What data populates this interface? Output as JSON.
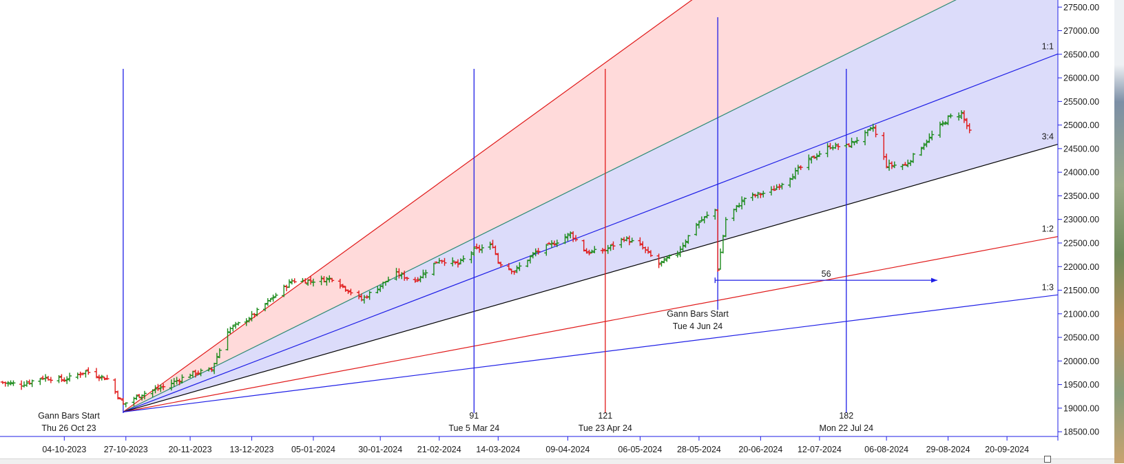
{
  "colors": {
    "up_bar": "#1a8a1a",
    "down_bar": "#e01818",
    "blue_line": "#1e1ee6",
    "red_line": "#e01818",
    "teal_line": "#2e8b74",
    "black_line": "#000000",
    "pink_fill": "#ffdada",
    "lavender_fill": "#dcdcfa"
  },
  "chart_data": {
    "type": "ohlc",
    "y_axis": {
      "range": [
        18400,
        27650
      ],
      "ticks": [
        "18500.00",
        "19000.00",
        "19500.00",
        "20000.00",
        "20500.00",
        "21000.00",
        "21500.00",
        "22000.00",
        "22500.00",
        "23000.00",
        "23500.00",
        "24000.00",
        "24500.00",
        "25000.00",
        "25500.00",
        "26000.00",
        "26500.00",
        "27000.00",
        "27500.00"
      ],
      "position": "right"
    },
    "x_axis": {
      "range": [
        "2023-09-10",
        "2024-10-09"
      ],
      "ticks": [
        {
          "date": "2023-10-04",
          "label": "04-10-2023"
        },
        {
          "date": "2023-10-27",
          "label": "27-10-2023"
        },
        {
          "date": "2023-11-20",
          "label": "20-11-2023"
        },
        {
          "date": "2023-12-13",
          "label": "13-12-2023"
        },
        {
          "date": "2024-01-05",
          "label": "05-01-2024"
        },
        {
          "date": "2024-01-30",
          "label": "30-01-2024"
        },
        {
          "date": "2024-02-21",
          "label": "21-02-2024"
        },
        {
          "date": "2024-03-14",
          "label": "14-03-2024"
        },
        {
          "date": "2024-04-09",
          "label": "09-04-2024"
        },
        {
          "date": "2024-05-06",
          "label": "06-05-2024"
        },
        {
          "date": "2024-05-28",
          "label": "28-05-2024"
        },
        {
          "date": "2024-06-20",
          "label": "20-06-2024"
        },
        {
          "date": "2024-07-12",
          "label": "12-07-2024"
        },
        {
          "date": "2024-08-06",
          "label": "06-08-2024"
        },
        {
          "date": "2024-08-29",
          "label": "29-08-2024"
        },
        {
          "date": "2024-09-20",
          "label": "20-09-2024"
        }
      ]
    },
    "price_anchors": [
      [
        "2023-09-10",
        19550
      ],
      [
        "2023-09-18",
        19500
      ],
      [
        "2023-09-26",
        19650
      ],
      [
        "2023-10-04",
        19600
      ],
      [
        "2023-10-12",
        19780
      ],
      [
        "2023-10-20",
        19620
      ],
      [
        "2023-10-26",
        19080
      ],
      [
        "2023-11-02",
        19300
      ],
      [
        "2023-11-10",
        19450
      ],
      [
        "2023-11-20",
        19720
      ],
      [
        "2023-11-28",
        19820
      ],
      [
        "2023-12-04",
        20650
      ],
      [
        "2023-12-13",
        20950
      ],
      [
        "2023-12-20",
        21300
      ],
      [
        "2023-12-28",
        21700
      ],
      [
        "2024-01-05",
        21700
      ],
      [
        "2024-01-12",
        21750
      ],
      [
        "2024-01-18",
        21500
      ],
      [
        "2024-01-23",
        21300
      ],
      [
        "2024-01-30",
        21600
      ],
      [
        "2024-02-05",
        21850
      ],
      [
        "2024-02-12",
        21700
      ],
      [
        "2024-02-21",
        22150
      ],
      [
        "2024-02-28",
        22050
      ],
      [
        "2024-03-05",
        22350
      ],
      [
        "2024-03-12",
        22450
      ],
      [
        "2024-03-14",
        22100
      ],
      [
        "2024-03-20",
        21900
      ],
      [
        "2024-03-28",
        22300
      ],
      [
        "2024-04-04",
        22500
      ],
      [
        "2024-04-10",
        22700
      ],
      [
        "2024-04-16",
        22300
      ],
      [
        "2024-04-23",
        22350
      ],
      [
        "2024-04-30",
        22600
      ],
      [
        "2024-05-06",
        22450
      ],
      [
        "2024-05-13",
        22050
      ],
      [
        "2024-05-20",
        22300
      ],
      [
        "2024-05-27",
        22900
      ],
      [
        "2024-06-03",
        23200
      ],
      [
        "2024-06-04",
        21950
      ],
      [
        "2024-06-07",
        23000
      ],
      [
        "2024-06-14",
        23450
      ],
      [
        "2024-06-24",
        23600
      ],
      [
        "2024-07-01",
        23900
      ],
      [
        "2024-07-08",
        24250
      ],
      [
        "2024-07-16",
        24550
      ],
      [
        "2024-07-22",
        24550
      ],
      [
        "2024-07-29",
        24800
      ],
      [
        "2024-08-01",
        24950
      ],
      [
        "2024-08-06",
        24150
      ],
      [
        "2024-08-13",
        24150
      ],
      [
        "2024-08-20",
        24600
      ],
      [
        "2024-08-29",
        25150
      ],
      [
        "2024-09-03",
        25250
      ],
      [
        "2024-09-06",
        24850
      ]
    ],
    "fan_origin": {
      "date": "2023-10-26",
      "price": 18920
    },
    "fan_lines": [
      {
        "label": "",
        "color": "red",
        "end_date": "2024-06-06",
        "end_price": 28130
      },
      {
        "label": "",
        "color": "teal",
        "end_date": "2024-09-09",
        "end_price": 27880
      },
      {
        "label": "1:1",
        "color": "blue",
        "end_date": "2024-09-29",
        "end_price": 26290
      },
      {
        "label": "3:4",
        "color": "black",
        "end_date": "2024-09-29",
        "end_price": 24430
      },
      {
        "label": "1:2",
        "color": "red",
        "end_date": "2024-09-29",
        "end_price": 22530
      },
      {
        "label": "1:3",
        "color": "blue",
        "end_date": "2024-09-29",
        "end_price": 21330
      }
    ],
    "vertical_lines": [
      {
        "date": "2023-10-26",
        "color": "blue",
        "count": "",
        "date_label": ""
      },
      {
        "date": "2024-03-05",
        "color": "blue",
        "count": "91",
        "date_label": "Tue 5 Mar 24"
      },
      {
        "date": "2024-04-23",
        "color": "red",
        "count": "121",
        "date_label": "Tue 23 Apr 24"
      },
      {
        "date": "2024-06-04",
        "color": "blue",
        "count": "",
        "date_label": ""
      },
      {
        "date": "2024-07-22",
        "color": "blue",
        "count": "182",
        "date_label": "Mon 22 Jul 24"
      }
    ],
    "horizontal_arrow": {
      "from_date": "2024-06-03",
      "to_date": "2024-08-25",
      "price": 21710,
      "label": "56"
    },
    "annotations": {
      "gann_start_1": {
        "line1": "Gann Bars Start",
        "line2": "Thu 26 Oct 23"
      },
      "gann_start_2": {
        "line1": "Gann Bars Start",
        "line2": "Tue 4 Jun 24"
      }
    }
  }
}
